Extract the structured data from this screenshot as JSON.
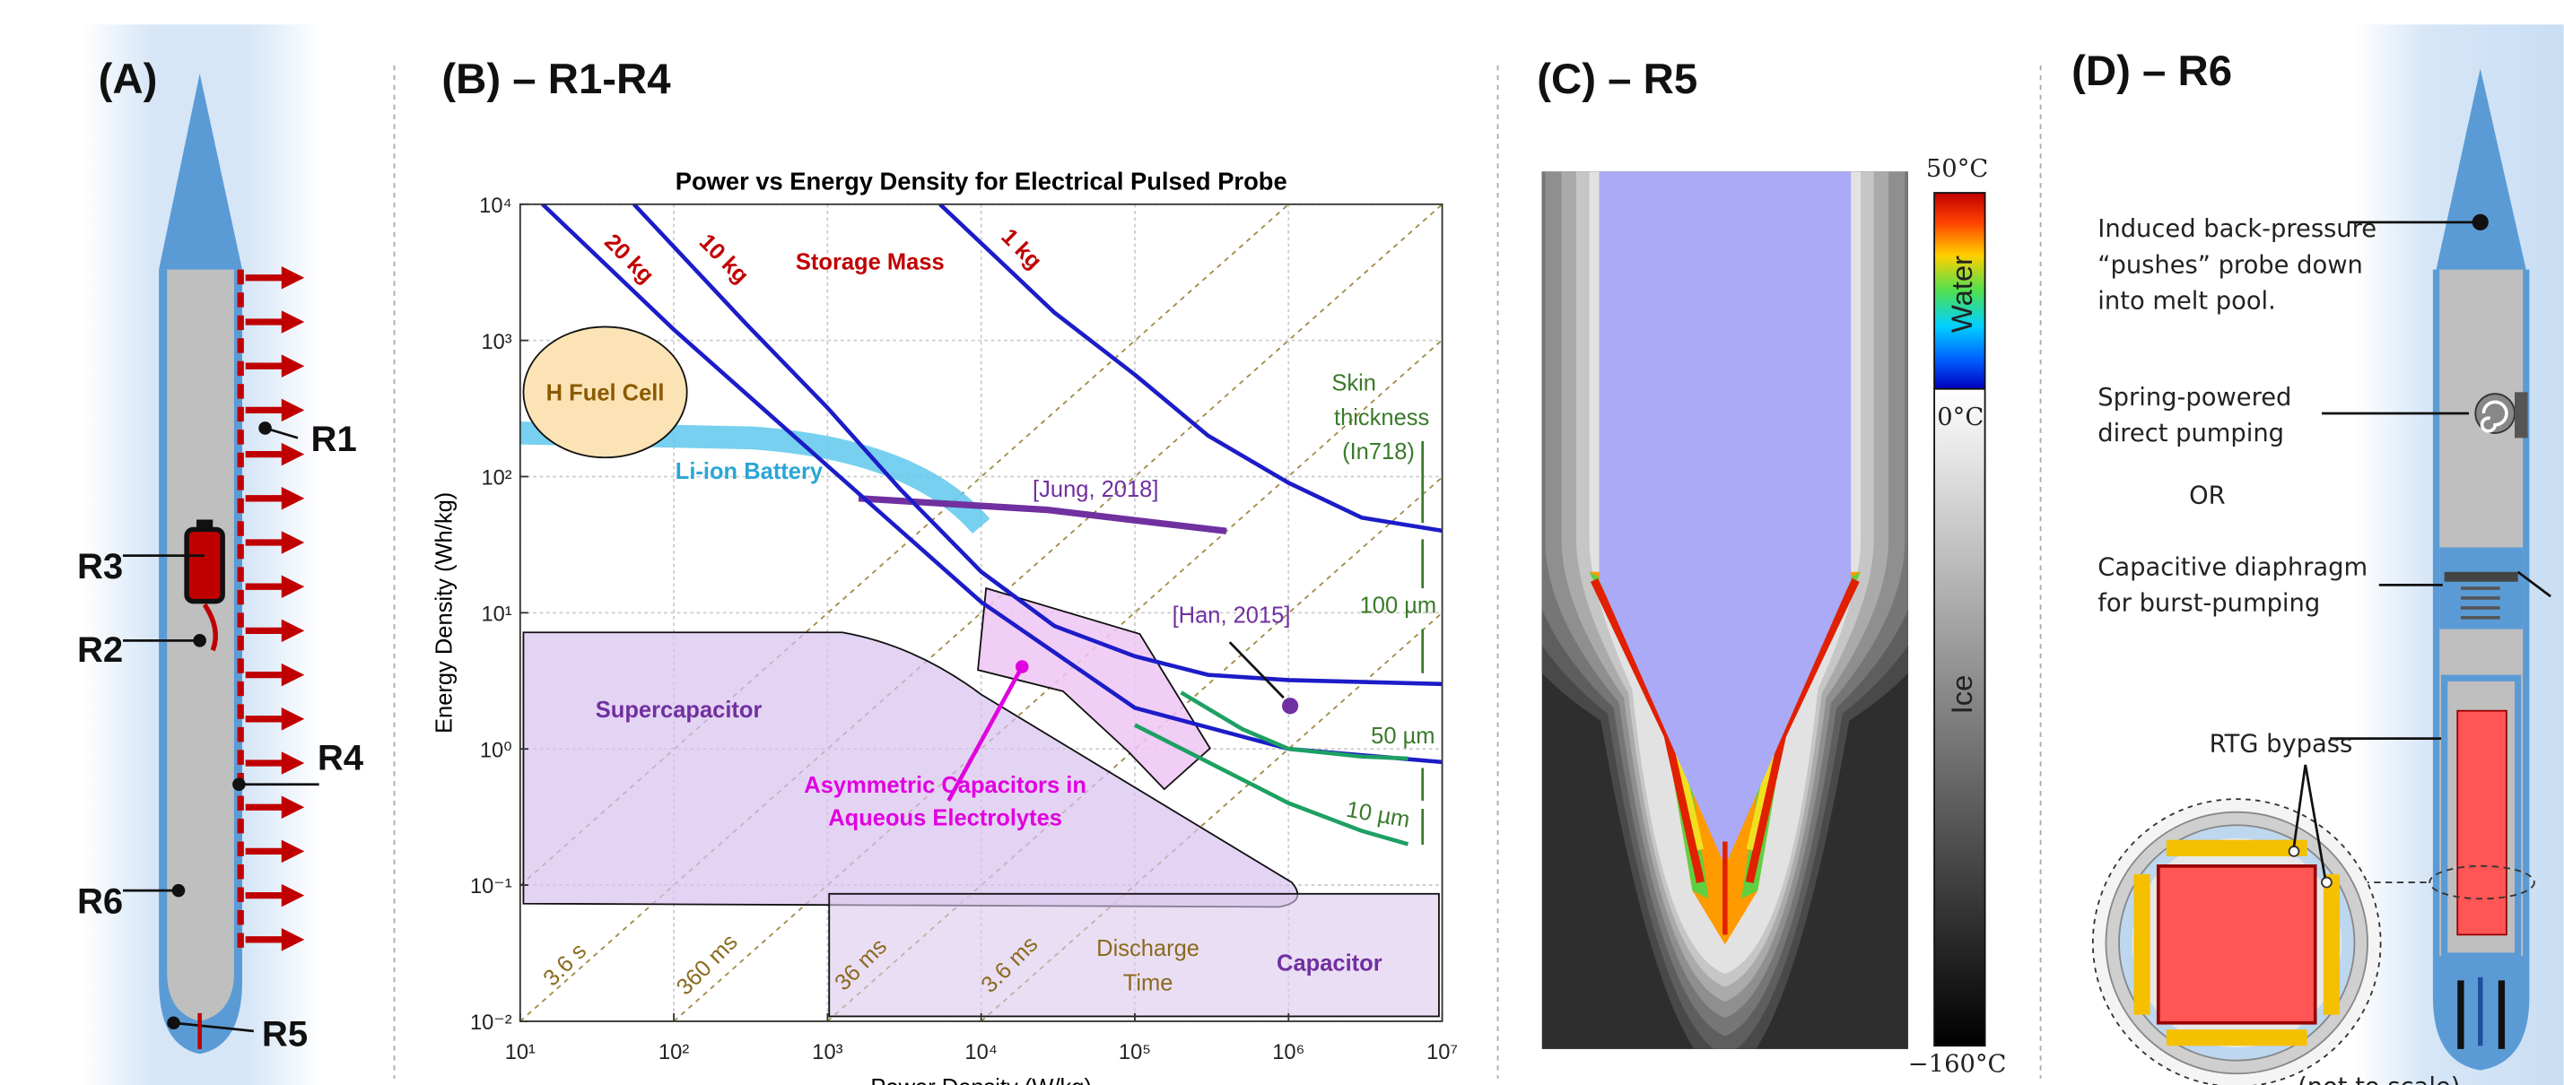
{
  "panel_a": {
    "label": "(A)",
    "regions": [
      "R1",
      "R2",
      "R3",
      "R4",
      "R5",
      "R6"
    ]
  },
  "chart_data": {
    "type": "line",
    "panel_label": "(B) – R1-R4",
    "title": "Power vs Energy Density for Electrical Pulsed Probe",
    "x_label": "Power Density (W/kg)",
    "y_label": "Energy Density (Wh/kg)",
    "log_x": true,
    "log_y": true,
    "grid": true,
    "xlim": [
      10,
      10000000
    ],
    "ylim": [
      0.01,
      10000
    ],
    "xticks": [
      {
        "value": 10,
        "label": "10¹"
      },
      {
        "value": 100,
        "label": "10²"
      },
      {
        "value": 1000,
        "label": "10³"
      },
      {
        "value": 10000,
        "label": "10⁴"
      },
      {
        "value": 100000,
        "label": "10⁵"
      },
      {
        "value": 1000000,
        "label": "10⁶"
      },
      {
        "value": 10000000,
        "label": "10⁷"
      }
    ],
    "yticks": [
      {
        "value": 0.01,
        "label": "10⁻²"
      },
      {
        "value": 0.1,
        "label": "10⁻¹"
      },
      {
        "value": 1,
        "label": "10⁰"
      },
      {
        "value": 10,
        "label": "10¹"
      },
      {
        "value": 100,
        "label": "10²"
      },
      {
        "value": 1000,
        "label": "10³"
      },
      {
        "value": 10000,
        "label": "10⁴"
      }
    ],
    "series": [
      {
        "name": "20 kg",
        "color": "#1c1cc8",
        "x": [
          14,
          100,
          1000,
          10000,
          100000,
          1000000,
          10000000
        ],
        "values": [
          10000,
          1200,
          120,
          12,
          2,
          1,
          0.8
        ]
      },
      {
        "name": "10 kg",
        "color": "#1c1cc8",
        "x": [
          55,
          300,
          1000,
          3000,
          10000,
          30000,
          100000,
          300000,
          1000000,
          10000000
        ],
        "values": [
          10000,
          1300,
          320,
          80,
          20,
          8,
          4.8,
          3.5,
          3.2,
          3
        ]
      },
      {
        "name": "1 kg",
        "color": "#1c1cc8",
        "x": [
          5400,
          30000,
          100000,
          300000,
          1000000,
          3000000,
          10000000
        ],
        "values": [
          10000,
          1600,
          560,
          200,
          90,
          50,
          40
        ]
      },
      {
        "name": "50 µm",
        "color": "#1ea064",
        "x": [
          200000,
          500000,
          1000000,
          3000000,
          6000000
        ],
        "values": [
          2.6,
          1.4,
          1,
          0.88,
          0.85
        ]
      },
      {
        "name": "10 µm",
        "color": "#1ea064",
        "x": [
          100000,
          300000,
          1000000,
          3000000,
          6000000
        ],
        "values": [
          1.5,
          0.8,
          0.4,
          0.25,
          0.2
        ]
      }
    ],
    "annotations": {
      "storage_mass": "Storage Mass",
      "fuel_cell": "H Fuel Cell",
      "li_ion": "Li-ion Battery",
      "jung": "[Jung, 2018]",
      "han": "[Han, 2015]",
      "supercapacitor": "Supercapacitor",
      "asymmetric": [
        "Asymmetric Capacitors in",
        "Aqueous Electrolytes"
      ],
      "capacitor": "Capacitor",
      "discharge": [
        "Discharge",
        "Time"
      ],
      "skin": [
        "Skin",
        "thickness",
        "(In718)"
      ],
      "skin_100": "100 µm",
      "times": [
        "3.6 s",
        "360 ms",
        "36 ms",
        "3.6 ms"
      ]
    }
  },
  "panel_c": {
    "label": "(C) – R5",
    "colorbar": {
      "top": "50°C",
      "middle": "0°C",
      "bottom": "−160°C",
      "water": "Water",
      "ice": "Ice"
    }
  },
  "panel_d": {
    "label": "(D) – R6",
    "back_pressure": [
      "Induced back-pressure",
      "“pushes” probe down",
      "into melt pool."
    ],
    "spring": [
      "Spring-powered",
      "direct pumping"
    ],
    "or": "OR",
    "diaphragm": [
      "Capacitive diaphragm",
      "for burst-pumping"
    ],
    "rtg": "RTG bypass",
    "scale_note": "(not to scale)"
  }
}
